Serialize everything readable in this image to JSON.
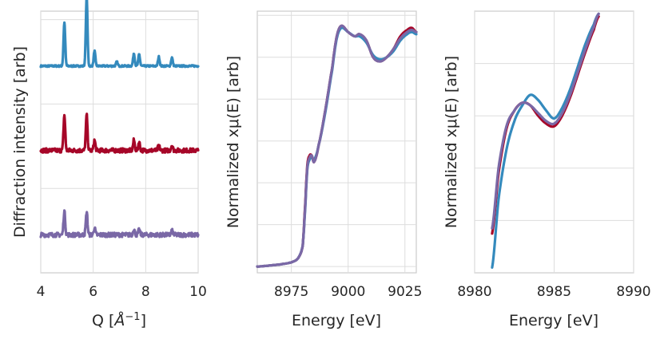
{
  "chart_data": [
    {
      "type": "line",
      "title": "",
      "xlabel": "Q [Å⁻¹]",
      "ylabel": "Diffraction intensity [arb]",
      "xlim": [
        4,
        10
      ],
      "ylim": [
        0,
        3.1
      ],
      "xticks": [
        4,
        6,
        8,
        10
      ],
      "xtick_labels": [
        "4",
        "6",
        "8",
        "10"
      ],
      "grid": true,
      "series": [
        {
          "name": "blue",
          "color": "#348abd",
          "offset": 2,
          "peaks": [
            [
              4.9,
              0.52
            ],
            [
              5.75,
              0.82
            ],
            [
              6.05,
              0.18
            ],
            [
              6.9,
              0.05
            ],
            [
              7.55,
              0.15
            ],
            [
              7.75,
              0.14
            ],
            [
              8.5,
              0.11
            ],
            [
              9.0,
              0.1
            ]
          ]
        },
        {
          "name": "red",
          "color": "#a60628",
          "offset": 1,
          "peaks": [
            [
              4.9,
              0.42
            ],
            [
              5.75,
              0.42
            ],
            [
              6.05,
              0.12
            ],
            [
              7.55,
              0.12
            ],
            [
              7.75,
              0.1
            ],
            [
              8.5,
              0.06
            ],
            [
              9.0,
              0.06
            ]
          ]
        },
        {
          "name": "purple",
          "color": "#7a68a6",
          "offset": 0,
          "peaks": [
            [
              4.9,
              0.28
            ],
            [
              5.75,
              0.27
            ],
            [
              6.05,
              0.08
            ],
            [
              7.55,
              0.07
            ],
            [
              7.75,
              0.06
            ],
            [
              9.0,
              0.05
            ]
          ]
        }
      ]
    },
    {
      "type": "line",
      "title": "",
      "xlabel": "Energy [eV]",
      "ylabel": "Normalized xμ(E) [arb]",
      "xlim": [
        8960,
        9030
      ],
      "ylim": [
        -0.03,
        1.22
      ],
      "xticks": [
        8975,
        9000,
        9025
      ],
      "xtick_labels": [
        "8975",
        "9000",
        "9025"
      ],
      "grid": true,
      "series": [
        {
          "name": "red",
          "color": "#a60628",
          "x": [
            8960,
            8970,
            8975,
            8978,
            8980,
            8981,
            8982,
            8983,
            8984,
            8985,
            8987,
            8990,
            8993,
            8995,
            8997,
            9000,
            9003,
            9005,
            9008,
            9011,
            9014,
            9017,
            9020,
            9023,
            9026,
            9028,
            9030
          ],
          "y": [
            0,
            0.01,
            0.02,
            0.04,
            0.1,
            0.28,
            0.48,
            0.53,
            0.53,
            0.5,
            0.58,
            0.75,
            0.95,
            1.1,
            1.15,
            1.12,
            1.1,
            1.11,
            1.08,
            1.0,
            0.98,
            1.0,
            1.04,
            1.1,
            1.13,
            1.14,
            1.12
          ]
        },
        {
          "name": "blue",
          "color": "#348abd",
          "x": [
            8960,
            8970,
            8975,
            8978,
            8980,
            8981,
            8982,
            8983,
            8984,
            8985,
            8987,
            8990,
            8993,
            8995,
            8997,
            9000,
            9003,
            9005,
            9008,
            9011,
            9014,
            9017,
            9020,
            9023,
            9026,
            9028,
            9030
          ],
          "y": [
            0,
            0.01,
            0.02,
            0.04,
            0.1,
            0.26,
            0.46,
            0.51,
            0.52,
            0.51,
            0.58,
            0.74,
            0.94,
            1.09,
            1.14,
            1.12,
            1.1,
            1.1,
            1.07,
            1.01,
            0.99,
            1.0,
            1.03,
            1.08,
            1.11,
            1.12,
            1.11
          ]
        },
        {
          "name": "purple",
          "color": "#7a68a6",
          "x": [
            8960,
            8970,
            8975,
            8978,
            8980,
            8981,
            8982,
            8983,
            8984,
            8985,
            8987,
            8990,
            8993,
            8995,
            8997,
            9000,
            9003,
            9005,
            9008,
            9011,
            9014,
            9017,
            9020,
            9023,
            9026,
            9028,
            9030
          ],
          "y": [
            0,
            0.01,
            0.02,
            0.04,
            0.1,
            0.27,
            0.47,
            0.52,
            0.53,
            0.5,
            0.58,
            0.75,
            0.95,
            1.1,
            1.15,
            1.12,
            1.1,
            1.11,
            1.08,
            1.0,
            0.98,
            1.0,
            1.04,
            1.09,
            1.12,
            1.13,
            1.12
          ]
        }
      ]
    },
    {
      "type": "line",
      "title": "",
      "xlabel": "Energy [eV]",
      "ylabel": "Normalized xμ(E) [arb]",
      "xlim": [
        8980,
        8990
      ],
      "ylim": [
        0,
        1
      ],
      "xticks": [
        8980,
        8985,
        8990
      ],
      "xtick_labels": [
        "8980",
        "8985",
        "8990"
      ],
      "grid": true,
      "series": [
        {
          "name": "red",
          "color": "#a60628",
          "x": [
            8981.1,
            8981.5,
            8982,
            8982.5,
            8983,
            8983.5,
            8984,
            8984.5,
            8985,
            8985.5,
            8986,
            8986.5,
            8987,
            8987.5,
            8987.8
          ],
          "y": [
            0.15,
            0.38,
            0.55,
            0.62,
            0.65,
            0.64,
            0.6,
            0.57,
            0.56,
            0.6,
            0.67,
            0.76,
            0.85,
            0.93,
            0.98
          ]
        },
        {
          "name": "blue",
          "color": "#348abd",
          "x": [
            8981.1,
            8981.5,
            8982,
            8982.5,
            8983,
            8983.5,
            8984,
            8984.5,
            8985,
            8985.5,
            8986,
            8986.5,
            8987,
            8987.5,
            8987.8
          ],
          "y": [
            0.02,
            0.28,
            0.47,
            0.58,
            0.64,
            0.68,
            0.66,
            0.62,
            0.59,
            0.63,
            0.7,
            0.79,
            0.88,
            0.95,
            0.99
          ]
        },
        {
          "name": "purple",
          "color": "#7a68a6",
          "x": [
            8981.1,
            8981.5,
            8982,
            8982.5,
            8983,
            8983.5,
            8984,
            8984.5,
            8985,
            8985.5,
            8986,
            8986.5,
            8987,
            8987.5,
            8987.8
          ],
          "y": [
            0.17,
            0.4,
            0.56,
            0.62,
            0.65,
            0.64,
            0.61,
            0.58,
            0.57,
            0.61,
            0.68,
            0.77,
            0.86,
            0.94,
            0.99
          ]
        }
      ]
    }
  ]
}
